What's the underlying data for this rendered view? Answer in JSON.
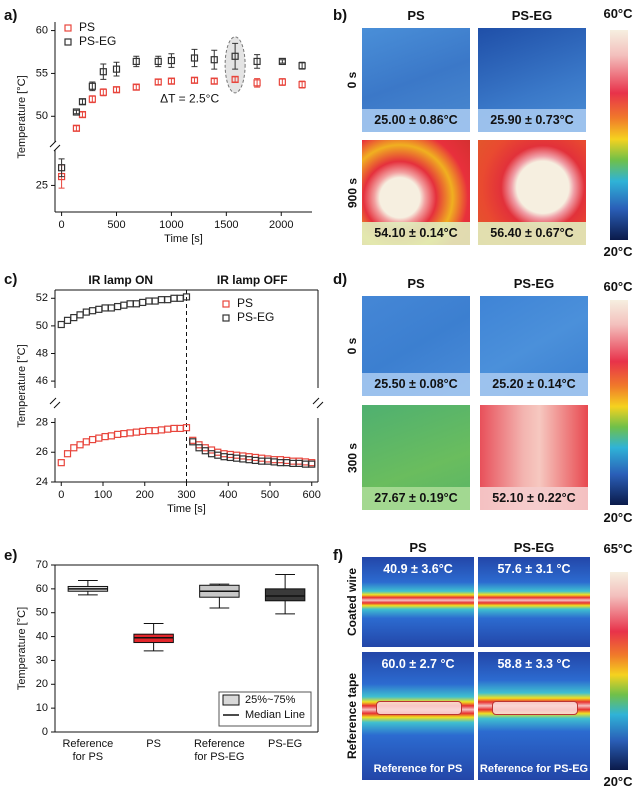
{
  "chart_data": [
    {
      "type": "scatter",
      "panel_label": "a)",
      "xlabel": "Time [s]",
      "ylabel": "Temperature [°C]",
      "xlim": [
        -60,
        2280
      ],
      "xticks": [
        0,
        500,
        1000,
        1500,
        2000
      ],
      "ylim": [
        22,
        61
      ],
      "ybreak": [
        29,
        47
      ],
      "yticks": [
        25,
        50,
        55,
        60
      ],
      "legend": "upper left",
      "annotation": "ΔT = 2.5°C",
      "x": [
        0,
        135,
        190,
        280,
        380,
        500,
        680,
        880,
        1000,
        1210,
        1390,
        1580,
        1780,
        2010,
        2190
      ],
      "series": [
        {
          "name": "PS",
          "color": "#e8453c",
          "values": [
            26.0,
            48.6,
            50.2,
            52.0,
            52.8,
            53.1,
            53.4,
            54.0,
            54.1,
            54.2,
            54.1,
            54.3,
            53.9,
            54.0,
            53.7
          ],
          "errors": [
            1.3,
            0.3,
            0.3,
            0.4,
            0.4,
            0.3,
            0.3,
            0.3,
            0.3,
            0.3,
            0.3,
            0.3,
            0.5,
            0.4,
            0.4
          ]
        },
        {
          "name": "PS-EG",
          "color": "#333333",
          "values": [
            27.0,
            50.5,
            51.7,
            53.5,
            55.2,
            55.5,
            56.4,
            56.4,
            56.5,
            56.8,
            56.6,
            57.0,
            56.4,
            56.4,
            55.9
          ],
          "errors": [
            1.0,
            0.2,
            0.3,
            0.5,
            0.9,
            0.8,
            0.6,
            0.6,
            0.8,
            1.0,
            1.1,
            1.5,
            0.8,
            0.2,
            0.4
          ]
        }
      ]
    },
    {
      "type": "scatter",
      "panel_label": "c)",
      "xlabel": "Time [s]",
      "ylabel": "Temperature [°C]",
      "xlim": [
        -15,
        615
      ],
      "xticks": [
        0,
        100,
        200,
        300,
        400,
        500,
        600
      ],
      "ylim": [
        24,
        52.6
      ],
      "ybreak": [
        28.3,
        45.5
      ],
      "yticks": [
        24,
        26,
        28,
        46,
        48,
        50,
        52
      ],
      "legend": "upper right",
      "annotations": [
        "IR lamp ON",
        "IR lamp OFF"
      ],
      "vline": 300,
      "x": [
        0,
        15,
        30,
        45,
        60,
        75,
        90,
        105,
        120,
        135,
        150,
        165,
        180,
        195,
        210,
        225,
        240,
        255,
        270,
        285,
        300,
        315,
        330,
        345,
        360,
        375,
        390,
        405,
        420,
        435,
        450,
        465,
        480,
        495,
        510,
        525,
        540,
        555,
        570,
        585,
        600
      ],
      "series": [
        {
          "name": "PS",
          "color": "#e8453c",
          "values": [
            25.3,
            25.9,
            26.3,
            26.5,
            26.7,
            26.85,
            26.95,
            27.05,
            27.1,
            27.2,
            27.25,
            27.3,
            27.35,
            27.4,
            27.45,
            27.45,
            27.5,
            27.55,
            27.6,
            27.6,
            27.65,
            26.8,
            26.5,
            26.3,
            26.15,
            26.0,
            25.9,
            25.85,
            25.8,
            25.75,
            25.7,
            25.65,
            25.6,
            25.55,
            25.5,
            25.5,
            25.45,
            25.4,
            25.4,
            25.35,
            25.3
          ]
        },
        {
          "name": "PS-EG",
          "color": "#333333",
          "values": [
            50.1,
            50.4,
            50.6,
            50.8,
            51.0,
            51.1,
            51.2,
            51.3,
            51.3,
            51.4,
            51.5,
            51.6,
            51.6,
            51.7,
            51.8,
            51.8,
            51.9,
            51.9,
            52.0,
            52.0,
            52.1,
            26.7,
            26.3,
            26.1,
            25.9,
            25.8,
            25.7,
            25.65,
            25.6,
            25.55,
            25.5,
            25.45,
            25.4,
            25.4,
            25.35,
            25.3,
            25.3,
            25.25,
            25.25,
            25.2,
            25.2
          ]
        }
      ]
    },
    {
      "type": "box",
      "panel_label": "e)",
      "ylabel": "Temperature [°C]",
      "ylim": [
        0,
        70
      ],
      "yticks": [
        0,
        10,
        20,
        30,
        40,
        50,
        60,
        70
      ],
      "categories": [
        "Reference for PS",
        "PS",
        "Reference for PS-EG",
        "PS-EG"
      ],
      "colors": [
        "#d9d9d9",
        "#e3262b",
        "#c8c8c8",
        "#3a3a3a"
      ],
      "boxes": [
        {
          "low": 57.5,
          "q1": 59,
          "median": 60,
          "q3": 61,
          "high": 63.5
        },
        {
          "low": 34,
          "q1": 37.5,
          "median": 39.5,
          "q3": 41,
          "high": 45.5
        },
        {
          "low": 52,
          "q1": 56.5,
          "median": 59,
          "q3": 61.5,
          "high": 62
        },
        {
          "low": 49.5,
          "q1": 55,
          "median": 57,
          "q3": 60,
          "high": 66
        }
      ],
      "legend": [
        "25%~75%",
        "Median Line"
      ]
    }
  ],
  "images": [
    {
      "panel_label": "b)",
      "columns": [
        "PS",
        "PS-EG"
      ],
      "rows": [
        "0 s",
        "900 s"
      ],
      "cells": [
        [
          "25.00 ± 0.86°C",
          "25.90 ± 0.73°C"
        ],
        [
          "54.10 ± 0.14°C",
          "56.40 ± 0.67°C"
        ]
      ],
      "colorbar": [
        "60°C",
        "20°C"
      ]
    },
    {
      "panel_label": "d)",
      "columns": [
        "PS",
        "PS-EG"
      ],
      "rows": [
        "0 s",
        "300 s"
      ],
      "cells": [
        [
          "25.50 ± 0.08°C",
          "25.20 ± 0.14°C"
        ],
        [
          "27.67 ± 0.19°C",
          "52.10 ± 0.22°C"
        ]
      ],
      "colorbar": [
        "60°C",
        "20°C"
      ]
    },
    {
      "panel_label": "f)",
      "columns": [
        "PS",
        "PS-EG"
      ],
      "rows": [
        "Coated wire",
        "Reference tape"
      ],
      "cells": [
        [
          "40.9 ± 3.6°C",
          "57.6 ± 3.1 °C"
        ],
        [
          "60.0 ± 2.7 °C",
          "58.8 ± 3.3 °C"
        ]
      ],
      "captions": [
        "Reference for PS",
        "Reference for PS-EG"
      ],
      "colorbar": [
        "65°C",
        "20°C"
      ]
    }
  ]
}
